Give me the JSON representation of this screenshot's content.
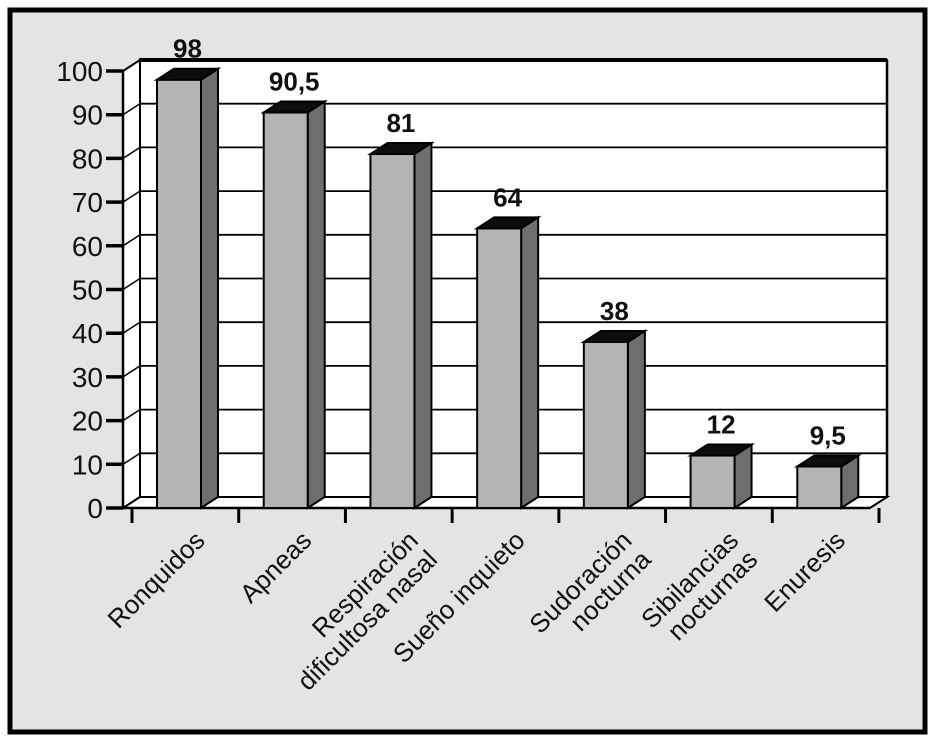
{
  "chart_data": {
    "type": "bar",
    "style": "3d-column",
    "title": "",
    "xlabel": "",
    "ylabel": "",
    "categories": [
      [
        "Ronquidos"
      ],
      [
        "Apneas"
      ],
      [
        "Respiración",
        "dificultosa nasal"
      ],
      [
        "Sueño inquieto"
      ],
      [
        "Sudoración",
        "nocturna"
      ],
      [
        "Sibilancias",
        "nocturnas"
      ],
      [
        "Enuresis"
      ]
    ],
    "values": [
      98,
      90.5,
      81,
      64,
      38,
      12,
      9.5
    ],
    "value_labels": [
      "98",
      "90,5",
      "81",
      "64",
      "38",
      "12",
      "9,5"
    ],
    "y_ticks": [
      0,
      10,
      20,
      30,
      40,
      50,
      60,
      70,
      80,
      90,
      100
    ],
    "y_tick_labels": [
      "0",
      "10",
      "20",
      "30",
      "40",
      "50",
      "60",
      "70",
      "80",
      "90",
      "100"
    ],
    "ylim": [
      0,
      100
    ],
    "grid": true,
    "legend": "none",
    "colors": {
      "bar_front": "#b4b4b4",
      "bar_side": "#6e6e6e",
      "bar_top": "#0d0d0d",
      "background": "#e4e4e4",
      "plot_background": "#ffffff",
      "line": "#000000",
      "text": "#111111",
      "page": "#ffffff"
    }
  }
}
